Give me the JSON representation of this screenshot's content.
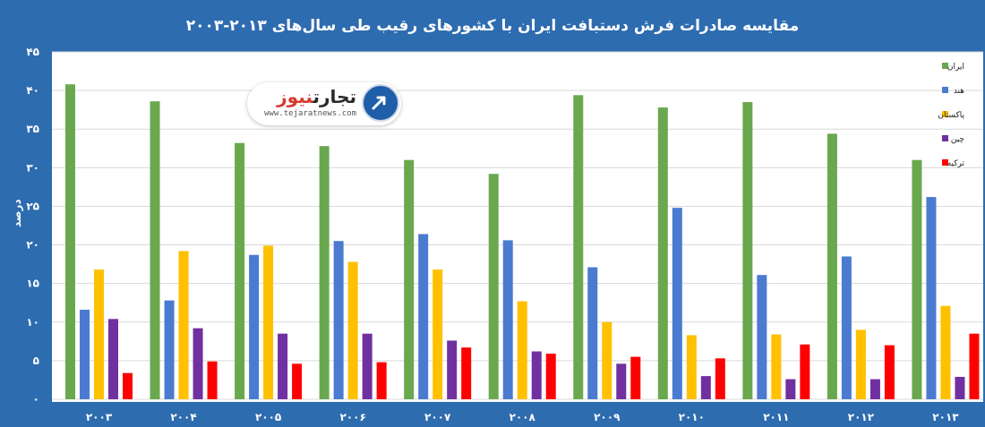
{
  "title": "مقایسه صادرات فرش دستبافت ایران با کشورهای رقیب طی سال‌های ۲۰۱۳-۲۰۰۳",
  "logo": {
    "brand_main": "تجارت",
    "brand_accent": "نیوز",
    "url": "www.tejaratnews.com"
  },
  "chart_data": {
    "type": "bar",
    "title": "مقایسه صادرات فرش دستبافت ایران با کشورهای رقیب طی سال‌های ۲۰۱۳-۲۰۰۳",
    "ylabel": "درصد",
    "xlabel": "",
    "ylim": [
      0,
      45
    ],
    "yticks": [
      0,
      5,
      10,
      15,
      20,
      25,
      30,
      35,
      40,
      45
    ],
    "ytick_labels": [
      "۰",
      "۵",
      "۱۰",
      "۱۵",
      "۲۰",
      "۲۵",
      "۳۰",
      "۳۵",
      "۴۰",
      "۴۵"
    ],
    "categories": [
      "۲۰۰۳",
      "۲۰۰۴",
      "۲۰۰۵",
      "۲۰۰۶",
      "۲۰۰۷",
      "۲۰۰۸",
      "۲۰۰۹",
      "۲۰۱۰",
      "۲۰۱۱",
      "۲۰۱۲",
      "۲۰۱۳"
    ],
    "grid": true,
    "legend_position": "top-right",
    "series": [
      {
        "name": "ایران",
        "color": "#6aa84f",
        "values": [
          40.8,
          38.6,
          33.2,
          32.8,
          31.0,
          29.2,
          39.4,
          37.8,
          38.5,
          34.4,
          31.0
        ]
      },
      {
        "name": "هند",
        "color": "#4a7bd0",
        "values": [
          11.6,
          12.8,
          18.7,
          20.5,
          21.4,
          20.6,
          17.1,
          24.8,
          16.1,
          18.5,
          26.2
        ]
      },
      {
        "name": "پاکستان",
        "color": "#ffc000",
        "values": [
          16.8,
          19.2,
          19.9,
          17.8,
          16.8,
          12.7,
          10.0,
          8.3,
          8.4,
          9.0,
          12.1
        ]
      },
      {
        "name": "چین",
        "color": "#7030a0",
        "values": [
          10.4,
          9.2,
          8.5,
          8.5,
          7.6,
          6.2,
          4.6,
          3.0,
          2.6,
          2.6,
          2.9
        ]
      },
      {
        "name": "ترکیه",
        "color": "#ff0000",
        "values": [
          3.4,
          4.9,
          4.6,
          4.8,
          6.7,
          5.9,
          5.5,
          5.3,
          7.1,
          7.0,
          8.5
        ]
      }
    ]
  }
}
